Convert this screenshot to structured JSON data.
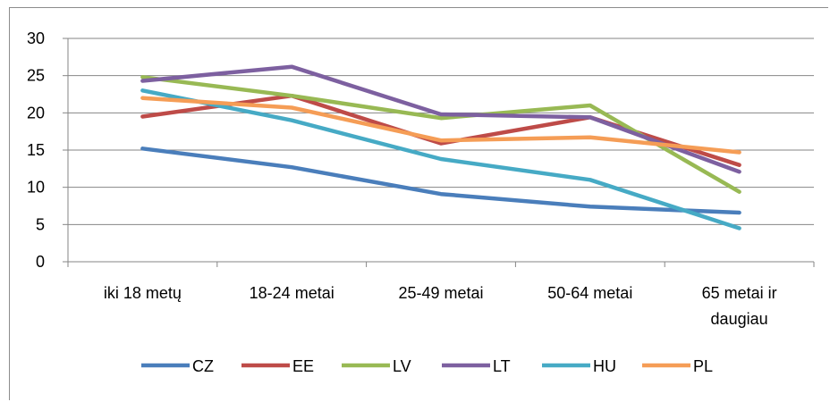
{
  "chart_data": {
    "type": "line",
    "categories": [
      [
        "iki 18 metų"
      ],
      [
        "18-24 metai"
      ],
      [
        "25-49 metai"
      ],
      [
        "50-64 metai"
      ],
      [
        "65 metai ir",
        "daugiau"
      ]
    ],
    "ylim": [
      0,
      30
    ],
    "yticks": [
      0,
      5,
      10,
      15,
      20,
      25,
      30
    ],
    "grid": true,
    "legend_position": "bottom",
    "series": [
      {
        "name": "CZ",
        "color": "#4a7ebb",
        "values": [
          15.2,
          12.7,
          9.1,
          7.4,
          6.6
        ]
      },
      {
        "name": "EE",
        "color": "#be4b48",
        "values": [
          19.5,
          22.3,
          15.9,
          19.4,
          13.0
        ]
      },
      {
        "name": "LV",
        "color": "#98b954",
        "values": [
          24.8,
          22.3,
          19.3,
          21.0,
          9.4
        ]
      },
      {
        "name": "LT",
        "color": "#7d60a0",
        "values": [
          24.3,
          26.2,
          19.8,
          19.4,
          12.1
        ]
      },
      {
        "name": "HU",
        "color": "#46aac5",
        "values": [
          23.0,
          19.0,
          13.8,
          11.0,
          4.5
        ]
      },
      {
        "name": "PL",
        "color": "#f59d56",
        "values": [
          22.0,
          20.7,
          16.3,
          16.7,
          14.7
        ]
      }
    ]
  }
}
